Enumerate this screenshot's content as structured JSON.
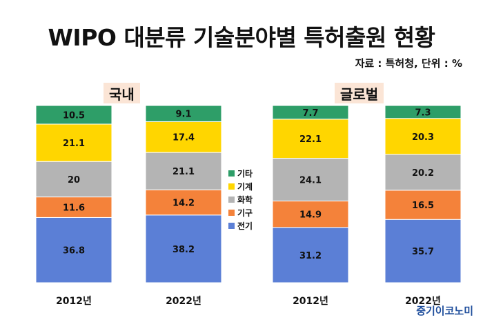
{
  "title": "WIPO 대분류 기술분야별 특허출원 현황",
  "source": "자료 : 특허청, 단위 : %",
  "watermark": "중기이코노미",
  "chart_data": {
    "type": "bar",
    "stacked": true,
    "groups": [
      "국내",
      "글로벌"
    ],
    "categories": [
      "2012년",
      "2022년",
      "2012년",
      "2022년"
    ],
    "category_group": [
      "국내",
      "국내",
      "글로벌",
      "글로벌"
    ],
    "ylim": [
      0,
      100
    ],
    "series": [
      {
        "name": "전기",
        "color": "#5b7fd6",
        "values": [
          36.8,
          38.2,
          31.2,
          35.7
        ]
      },
      {
        "name": "기구",
        "color": "#f4823a",
        "values": [
          11.6,
          14.2,
          14.9,
          16.5
        ]
      },
      {
        "name": "화학",
        "color": "#b4b4b4",
        "values": [
          20,
          21.1,
          24.1,
          20.2
        ]
      },
      {
        "name": "기계",
        "color": "#ffd600",
        "values": [
          21.1,
          17.4,
          22.1,
          20.3
        ]
      },
      {
        "name": "기타",
        "color": "#2e9e68",
        "values": [
          10.5,
          9.1,
          7.7,
          7.3
        ]
      }
    ],
    "legend_order": [
      "기타",
      "기계",
      "화학",
      "기구",
      "전기"
    ],
    "grid": false,
    "legend_position": "center"
  }
}
